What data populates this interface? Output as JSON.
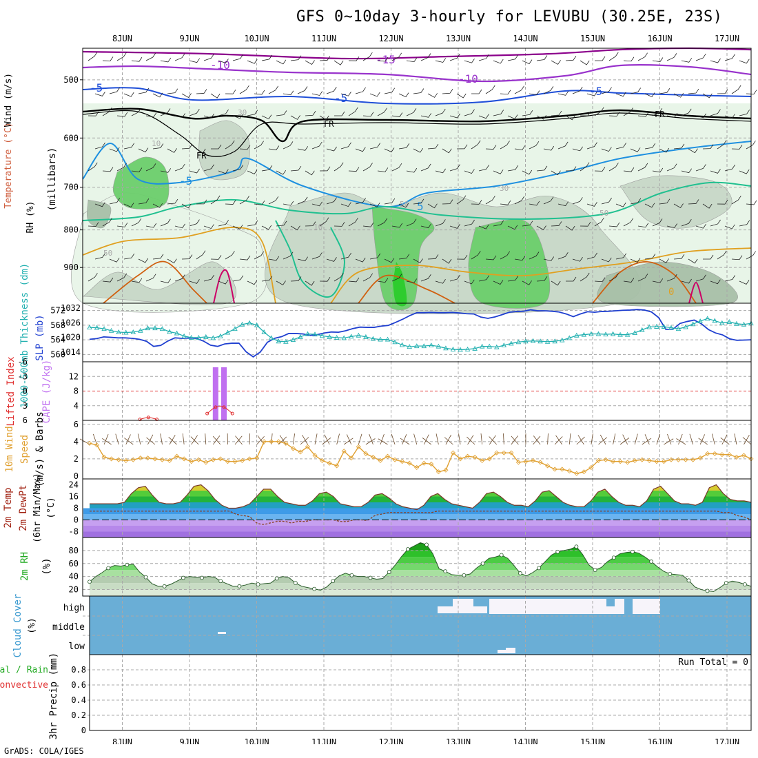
{
  "title": "GFS 0~10day 3-hourly for LEVUBU (30.25E, 23S)",
  "credit": "GrADS: COLA/IGES",
  "dates": [
    "8JUN",
    "9JUN",
    "10JUN",
    "11JUN",
    "12JUN",
    "13JUN",
    "14JUN",
    "15JUN",
    "16JUN",
    "17JUN"
  ],
  "chart_data": [
    {
      "type": "heatmap",
      "panel": "upper-air cross section",
      "ylabel_parts": {
        "rh": "RH (%)",
        "temperature": "Temperature (°C)",
        "wind": "Wind (m/s)",
        "axis": "(millibars)"
      },
      "y_ticks": [
        500,
        600,
        700,
        800,
        900
      ],
      "ylim": [
        1000,
        450
      ],
      "y_scale": "log-pressure",
      "contour_labels": [
        "-15",
        "-10",
        "-10",
        "-5",
        "-5",
        "-5",
        "FR",
        "FR",
        "FR",
        "-5",
        "5",
        "10",
        "10",
        "30",
        "30",
        "50",
        "50",
        "50",
        "0"
      ],
      "colors": {
        "rh": [
          "#e8f5e8",
          "#c8d8c8",
          "#a8c0a8",
          "#6ccf6c",
          "#2ecc2e"
        ],
        "temp_m15": "#8b008b",
        "temp_m10": "#9933cc",
        "temp_m5": "#1f4fd8",
        "temp_0": "#000000",
        "temp_5": "#1e90e0",
        "temp_10": "#20c090",
        "temp_15": "#e0a020",
        "temp_20": "#d06010",
        "temp_25": "#cc0066"
      }
    },
    {
      "type": "line",
      "panel": "thickness and SLP",
      "ylabel_left": "1000-500mb Thickness (dm)",
      "ylabel_right": "SLP (mb)",
      "left_ticks": [
        "560",
        "564",
        "568",
        "572"
      ],
      "right_ticks": [
        "1014",
        "1020",
        "1026",
        "1032"
      ],
      "series": [
        {
          "name": "1000-500mb Thickness (dm)",
          "color": "#22b0b0",
          "values": [
            567.4,
            567.3,
            567.0,
            566.5,
            566.1,
            566.0,
            566.1,
            566.5,
            567.2,
            567.2,
            567.0,
            566.2,
            565.8,
            565.0,
            564.6,
            564.6,
            564.8,
            564.5,
            565.0,
            566.0,
            567.0,
            568.2,
            568.6,
            568.0,
            566.1,
            564.5,
            563.6,
            563.5,
            564.0,
            564.8,
            565.6,
            565.5,
            565.1,
            564.8,
            564.6,
            564.5,
            564.9,
            565.2,
            564.8,
            564.3,
            564.1,
            564.1,
            563.4,
            562.6,
            562.1,
            562.3,
            562.3,
            562.5,
            562.2,
            561.7,
            561.4,
            561.3,
            561.4,
            561.6,
            562.2,
            562.2,
            562.0,
            562.5,
            563.0,
            563.4,
            563.6,
            563.7,
            563.6,
            563.5,
            563.6,
            563.9,
            564.5,
            565.2,
            565.4,
            565.6,
            565.6,
            565.5,
            565.6,
            565.4,
            565.4,
            565.9,
            566.7,
            567.5,
            567.6,
            567.6,
            567.3,
            567.0,
            567.5,
            568.3,
            569.1,
            569.8,
            569.2,
            568.6,
            568.9,
            568.4,
            568.2,
            568.5
          ]
        },
        {
          "name": "SLP (mb)",
          "color": "#1f3fd0",
          "values": [
            1019.2,
            1019.5,
            1020.2,
            1020.0,
            1019.8,
            1019.8,
            1019.6,
            1019.2,
            1018.4,
            1016.3,
            1016.7,
            1018.5,
            1019.8,
            1019.6,
            1019.7,
            1019.6,
            1018.5,
            1016.8,
            1016.3,
            1017.3,
            1017.6,
            1017.6,
            1014.1,
            1012.0,
            1014.0,
            1018.0,
            1019.6,
            1020.3,
            1021.6,
            1021.6,
            1021.4,
            1020.8,
            1021.1,
            1021.8,
            1022.2,
            1022.1,
            1022.7,
            1023.6,
            1024.2,
            1024.1,
            1024.1,
            1024.6,
            1024.9,
            1026.1,
            1027.4,
            1028.9,
            1030.1,
            1030.1,
            1030.2,
            1030.1,
            1030.1,
            1030.2,
            1030.0,
            1029.7,
            1029.6,
            1028.3,
            1027.8,
            1028.4,
            1029.3,
            1030.3,
            1030.6,
            1030.7,
            1031.3,
            1030.9,
            1030.9,
            1030.7,
            1030.4,
            1029.6,
            1028.5,
            1029.6,
            1030.5,
            1030.3,
            1030.6,
            1030.7,
            1030.9,
            1031.1,
            1031.2,
            1031.4,
            1031.2,
            1030.4,
            1028.1,
            1023.3,
            1023.3,
            1025.7,
            1026.5,
            1027.1,
            1025.6,
            1023.2,
            1021.8,
            1021.0,
            1019.4,
            1018.8,
            1018.9,
            1019.0
          ]
        }
      ]
    },
    {
      "type": "bar",
      "panel": "CAPE and Lifted Index",
      "ylabel_left": "Lifted Index",
      "ylabel_right": "CAPE (J/kg)",
      "left_ticks": [
        "-6",
        "-3",
        "0",
        "3",
        "6"
      ],
      "right_ticks": [
        "4",
        "8",
        "12"
      ],
      "colors": {
        "cape": "#c070f0",
        "li": "#e03030"
      },
      "cape_bars": [
        {
          "x": 15.0,
          "value": 14.5
        },
        {
          "x": 16.0,
          "value": 14.5
        }
      ],
      "li_points": [
        {
          "x": 6.0,
          "value": 5.8
        },
        {
          "x": 7.0,
          "value": 5.4
        },
        {
          "x": 8.0,
          "value": 5.8
        },
        {
          "x": 14.0,
          "value": 4.6
        },
        {
          "x": 15.0,
          "value": 3.3
        },
        {
          "x": 16.0,
          "value": 3.3
        },
        {
          "x": 17.0,
          "value": 4.6
        }
      ]
    },
    {
      "type": "line",
      "panel": "10m wind",
      "ylabel": "10m Wind Speed (m/s) & Barbs",
      "ylim": [
        0,
        6
      ],
      "y_ticks": [
        "0",
        "2",
        "4",
        "6"
      ],
      "series": [
        {
          "name": "10m Wind Speed",
          "color": "#e0a030",
          "values": [
            3.8,
            3.6,
            2.2,
            2.0,
            1.9,
            1.8,
            1.9,
            2.1,
            2.1,
            2.0,
            1.9,
            1.8,
            2.3,
            2.0,
            1.7,
            1.9,
            1.6,
            1.9,
            2.0,
            1.7,
            1.7,
            1.8,
            2.0,
            2.1,
            4.0,
            4.0,
            4.0,
            3.8,
            3.2,
            2.8,
            3.4,
            2.4,
            1.8,
            1.5,
            1.2,
            2.9,
            2.1,
            3.4,
            2.6,
            2.2,
            1.8,
            2.3,
            1.9,
            1.7,
            1.5,
            1.0,
            1.5,
            1.4,
            0.5,
            0.7,
            2.7,
            2.0,
            2.3,
            2.2,
            1.8,
            2.0,
            2.7,
            2.7,
            2.7,
            1.6,
            1.7,
            1.8,
            1.6,
            1.2,
            0.8,
            0.8,
            0.6,
            0.3,
            0.5,
            1.0,
            1.8,
            1.9,
            1.7,
            1.7,
            1.6,
            1.8,
            1.9,
            1.8,
            1.7,
            1.7,
            1.9,
            1.9,
            1.9,
            1.9,
            2.1,
            2.6,
            2.6,
            2.5,
            2.5,
            2.2,
            2.4,
            2.0
          ]
        }
      ]
    },
    {
      "type": "area",
      "panel": "2m temperature",
      "ylabel": "2m Temp 2m DewPt (6hr Min/Max) (°C)",
      "ylim": [
        -12,
        28
      ],
      "y_ticks": [
        "-8",
        "0",
        "8",
        "16",
        "24"
      ],
      "series": [
        {
          "name": "2m Temp",
          "values": [
            11,
            11,
            11,
            11,
            11,
            12,
            18,
            22,
            23,
            17,
            12,
            11,
            11,
            12,
            17,
            23,
            24,
            20,
            14,
            10,
            8,
            8,
            9,
            11,
            16,
            21,
            21,
            16,
            12,
            11,
            10,
            10,
            13,
            18,
            19,
            16,
            11,
            10,
            9,
            9,
            12,
            17,
            18,
            15,
            11,
            9,
            8,
            7,
            10,
            16,
            18,
            14,
            11,
            10,
            9,
            8,
            12,
            18,
            19,
            16,
            12,
            10,
            10,
            9,
            13,
            19,
            20,
            16,
            12,
            10,
            9,
            9,
            13,
            19,
            21,
            16,
            12,
            10,
            10,
            9,
            13,
            21,
            23,
            18,
            13,
            11,
            11,
            10,
            12,
            22,
            24,
            18,
            14,
            13,
            13,
            12
          ]
        },
        {
          "name": "2m DewPt",
          "values": [
            6,
            6,
            6,
            6,
            6,
            6,
            6,
            6,
            6,
            6,
            6,
            6,
            6,
            6,
            6,
            6,
            6,
            6,
            6,
            6,
            6,
            4,
            3,
            2,
            -2,
            -3,
            -2,
            -1,
            -1,
            -2,
            -1,
            -1,
            0,
            0,
            0,
            0,
            -1,
            -1,
            0,
            0,
            0,
            3,
            4,
            5,
            5,
            5,
            5,
            5,
            5,
            5,
            6,
            6,
            6,
            6,
            6,
            6,
            6,
            6,
            6,
            6,
            6,
            6,
            6,
            6,
            6,
            6,
            6,
            6,
            6,
            6,
            6,
            6,
            6,
            6,
            6,
            6,
            6,
            6,
            6,
            6,
            6,
            6,
            6,
            6,
            6,
            6,
            6,
            6,
            6,
            6,
            6,
            5,
            5,
            3,
            2,
            0
          ]
        }
      ]
    },
    {
      "type": "area",
      "panel": "2m relative humidity",
      "ylabel": "2m RH (%)",
      "ylim": [
        10,
        100
      ],
      "y_ticks": [
        "20",
        "40",
        "60",
        "80"
      ],
      "series": [
        {
          "name": "2m RH",
          "values": [
            32,
            40,
            46,
            53,
            57,
            56,
            58,
            59,
            47,
            39,
            29,
            25,
            25,
            28,
            33,
            38,
            40,
            39,
            38,
            40,
            39,
            33,
            29,
            25,
            25,
            27,
            30,
            28,
            29,
            30,
            37,
            40,
            38,
            30,
            25,
            23,
            21,
            19,
            24,
            33,
            41,
            45,
            42,
            40,
            40,
            38,
            36,
            37,
            47,
            58,
            71,
            82,
            87,
            92,
            89,
            75,
            52,
            48,
            43,
            42,
            42,
            44,
            53,
            60,
            68,
            70,
            73,
            68,
            57,
            45,
            41,
            46,
            53,
            63,
            73,
            78,
            80,
            82,
            86,
            74,
            58,
            50,
            54,
            63,
            69,
            75,
            77,
            78,
            76,
            70,
            63,
            55,
            48,
            44,
            43,
            42,
            34,
            24,
            20,
            18,
            17,
            23,
            30,
            33,
            31,
            28,
            25
          ]
        }
      ]
    },
    {
      "type": "heatmap",
      "panel": "cloud cover",
      "ylabel": "Cloud Cover (%)",
      "y_ticks": [
        "high",
        "middle",
        "low"
      ],
      "colors": {
        "full": "#6aaed6",
        "clear": "#f7f4fa"
      }
    },
    {
      "type": "bar",
      "panel": "3hr precip",
      "ylabel": "3hr Precip (mm)",
      "legend": [
        "Total / Rain",
        "Convective"
      ],
      "legend_colors": [
        "#22aa22",
        "#e03030"
      ],
      "ylim": [
        0,
        1
      ],
      "y_ticks": [
        "0",
        "0.2",
        "0.4",
        "0.6",
        "0.8"
      ],
      "run_total_label": "Run Total = 0",
      "values": []
    }
  ]
}
